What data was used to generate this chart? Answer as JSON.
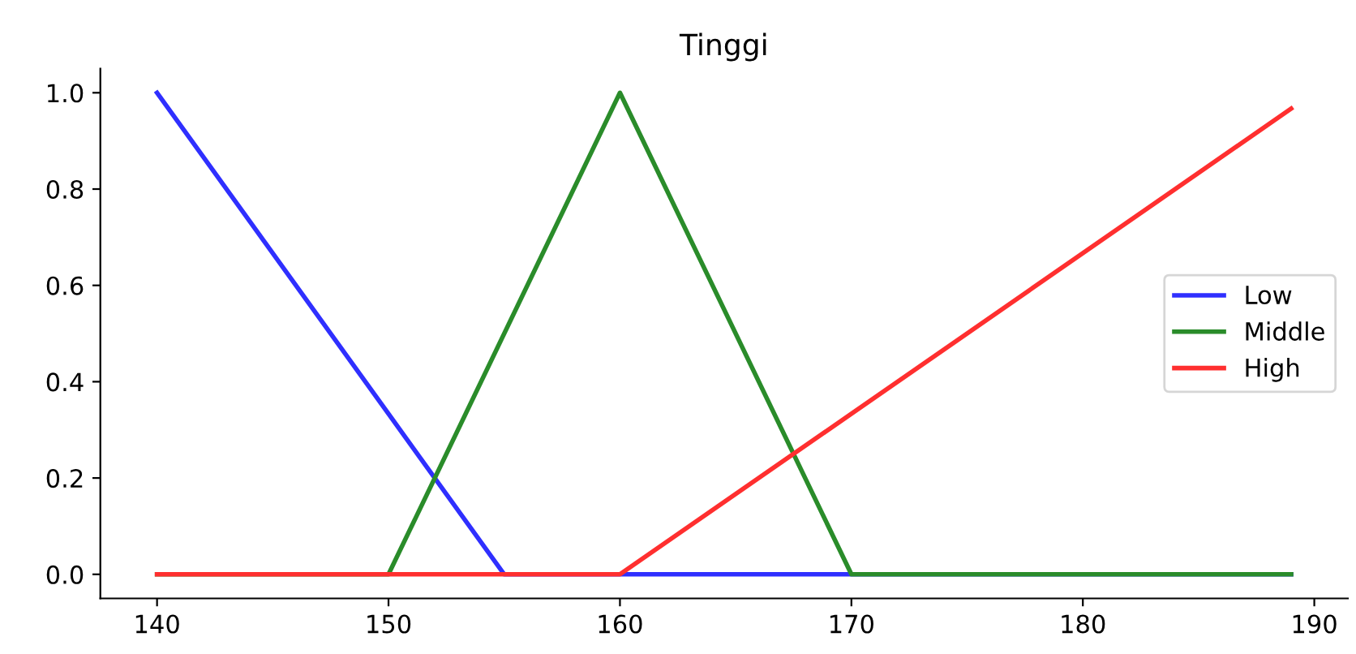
{
  "chart_data": {
    "type": "line",
    "title": "Tinggi",
    "series": [
      {
        "name": "Low",
        "color": "#2f2fff",
        "x": [
          140,
          155,
          189
        ],
        "values": [
          1.0,
          0.0,
          0.0
        ]
      },
      {
        "name": "Middle",
        "color": "#2a8c2a",
        "x": [
          140,
          150,
          160,
          170,
          189
        ],
        "values": [
          0.0,
          0.0,
          1.0,
          0.0,
          0.0
        ]
      },
      {
        "name": "High",
        "color": "#ff2f2f",
        "x": [
          140,
          160,
          189
        ],
        "values": [
          0.0,
          0.0,
          0.967
        ]
      }
    ],
    "xlim": [
      137.55,
      191.45
    ],
    "ylim": [
      -0.05,
      1.05
    ],
    "xticks": [
      140,
      150,
      160,
      170,
      180,
      190
    ],
    "yticks": [
      {
        "value": 0,
        "label": "0.0"
      },
      {
        "value": 0.2,
        "label": "0.2"
      },
      {
        "value": 0.4,
        "label": "0.4"
      },
      {
        "value": 0.6,
        "label": "0.6"
      },
      {
        "value": 0.8,
        "label": "0.8"
      },
      {
        "value": 1.0,
        "label": "1.0"
      }
    ],
    "legend": "center right",
    "grid": false,
    "line_style": "solid",
    "marker": "none"
  }
}
